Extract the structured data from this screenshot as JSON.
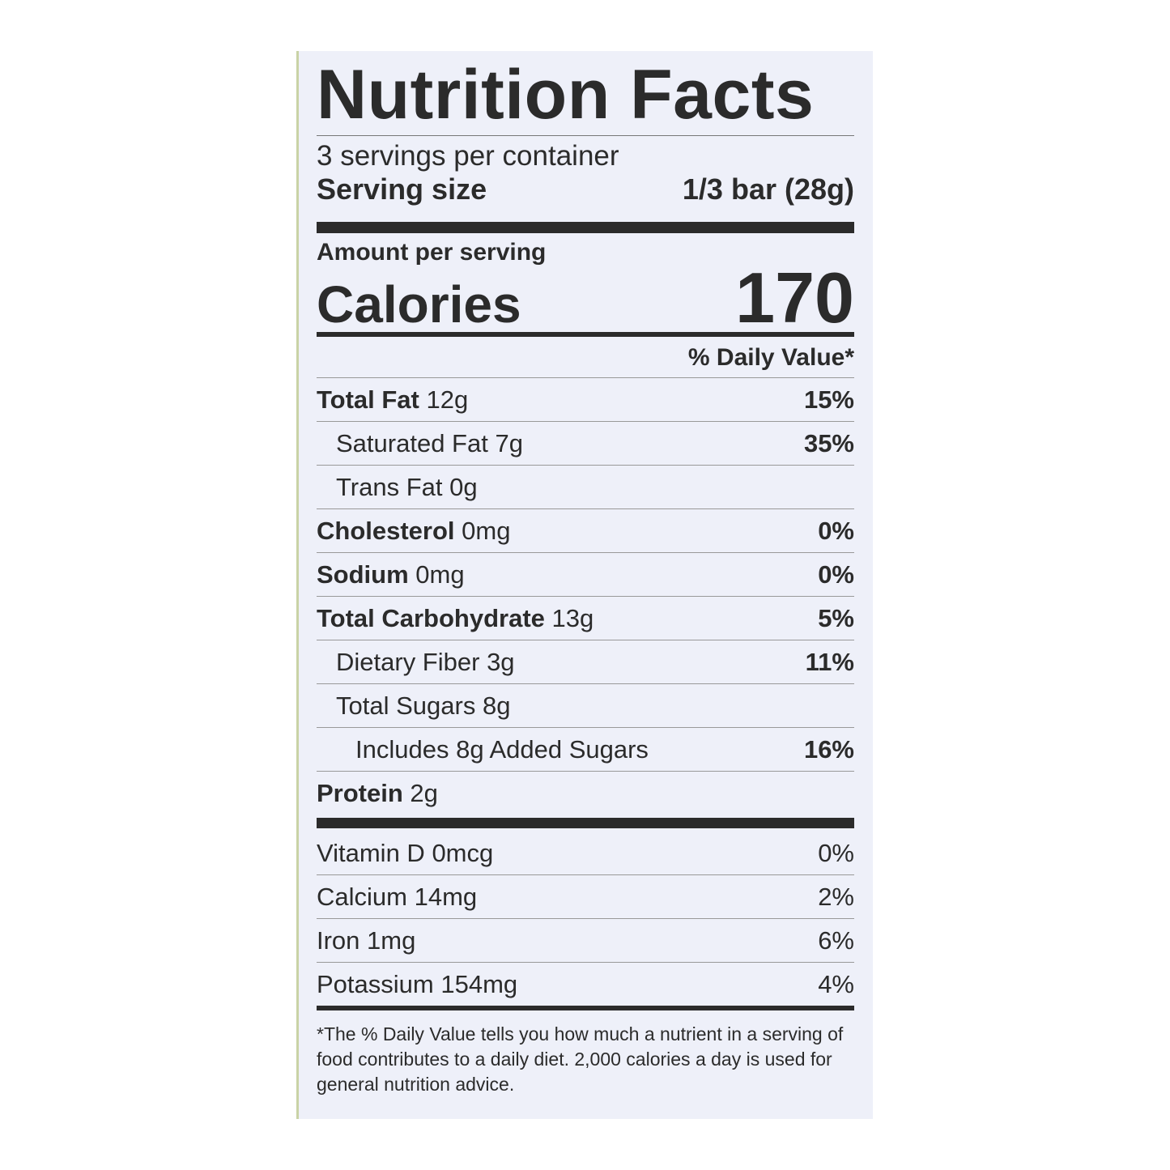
{
  "title": "Nutrition Facts",
  "servings_per_container": "3 servings per container",
  "serving_size": {
    "label": "Serving size",
    "value": "1/3 bar (28g)"
  },
  "amount_per_serving": "Amount per serving",
  "calories": {
    "label": "Calories",
    "value": 170
  },
  "daily_value_header": "% Daily Value*",
  "nutrients": [
    {
      "name": "Total Fat",
      "amount": "12g",
      "daily_value": "15%"
    },
    {
      "name": "Saturated Fat",
      "amount": "7g",
      "daily_value": "35%"
    },
    {
      "name": "Trans Fat",
      "amount": "0g"
    },
    {
      "name": "Cholesterol",
      "amount": "0mg",
      "daily_value": "0%"
    },
    {
      "name": "Sodium",
      "amount": "0mg",
      "daily_value": "0%"
    },
    {
      "name": "Total Carbohydrate",
      "amount": "13g",
      "daily_value": "5%"
    },
    {
      "name": "Dietary Fiber",
      "amount": "3g",
      "daily_value": "11%"
    },
    {
      "name": "Total Sugars",
      "amount": "8g"
    },
    {
      "name": "Includes 8g Added Sugars",
      "daily_value": "16%"
    },
    {
      "name": "Protein",
      "amount": "2g"
    }
  ],
  "vitamins": [
    {
      "name": "Vitamin D",
      "amount": "0mcg",
      "daily_value": "0%"
    },
    {
      "name": "Calcium",
      "amount": "14mg",
      "daily_value": "2%"
    },
    {
      "name": "Iron",
      "amount": "1mg",
      "daily_value": "6%"
    },
    {
      "name": "Potassium",
      "amount": "154mg",
      "daily_value": "4%"
    }
  ],
  "footnote": "*The % Daily Value tells you how much a nutrient in a serving of food contributes to a daily diet. 2,000 calories a day is used for general nutrition advice."
}
